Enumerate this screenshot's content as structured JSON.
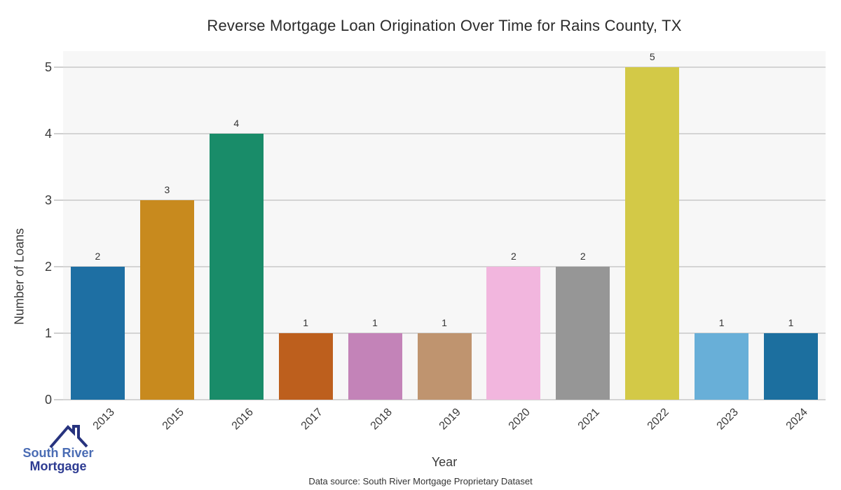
{
  "chart_data": {
    "type": "bar",
    "title": "Reverse Mortgage Loan Origination Over Time for Rains County, TX",
    "xlabel": "Year",
    "ylabel": "Number of Loans",
    "categories": [
      "2013",
      "2015",
      "2016",
      "2017",
      "2018",
      "2019",
      "2020",
      "2021",
      "2022",
      "2023",
      "2024"
    ],
    "values": [
      2,
      3,
      4,
      1,
      1,
      1,
      2,
      2,
      5,
      1,
      1
    ],
    "bar_colors": [
      "#1e6fa3",
      "#c88a1e",
      "#198c69",
      "#bd5f1d",
      "#c383b8",
      "#bf946f",
      "#f2b6de",
      "#969696",
      "#d3c947",
      "#68afd8",
      "#1c6f9f"
    ],
    "ylim": [
      0,
      5
    ],
    "yticks": [
      0,
      1,
      2,
      3,
      4,
      5
    ],
    "grid": "horizontal",
    "legend_position": "none",
    "plot_bg_color": "#f7f7f7",
    "gridline_color": "#d4d4d4",
    "tick_color": "#cfcfcf",
    "value_labels_shown": true
  },
  "footer": {
    "source": "Data source: South River Mortgage Proprietary Dataset"
  },
  "logo": {
    "line1": "South River",
    "line2": "Mortgage",
    "line1_color": "#4a6cb4",
    "line2_color": "#2d3b92",
    "icon_color": "#27337e"
  }
}
